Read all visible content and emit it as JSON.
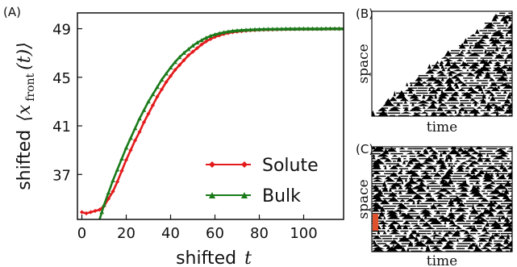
{
  "chart_data": [
    {
      "panel": "A",
      "panel_label": "(A)",
      "type": "line",
      "xlabel_prefix": "shifted",
      "xlabel_var": "t",
      "ylabel_prefix": "shifted",
      "ylabel_math": "⟨x",
      "ylabel_sub": "front",
      "ylabel_tail": "(t)⟩",
      "xlim": [
        -2,
        118
      ],
      "ylim": [
        33.3,
        50.3
      ],
      "xticks": [
        0,
        20,
        40,
        60,
        80,
        100
      ],
      "yticks": [
        37,
        41,
        45,
        49
      ],
      "legend_position": "lower-right",
      "series": [
        {
          "name": "Solute",
          "color": "#e41a1c",
          "marker": "diamond",
          "x": [
            0,
            2,
            4,
            6,
            8,
            10,
            12,
            14,
            16,
            18,
            20,
            22,
            24,
            26,
            28,
            30,
            32,
            34,
            36,
            38,
            40,
            42,
            44,
            46,
            48,
            50,
            52,
            54,
            56,
            58,
            60,
            62,
            64,
            66,
            68,
            70,
            72,
            74,
            76,
            78,
            80,
            82,
            84,
            86,
            88,
            90,
            92,
            94,
            96,
            98,
            100,
            102,
            104,
            106,
            108,
            110,
            112,
            114,
            116,
            118
          ],
          "y": [
            33.9,
            33.8,
            33.9,
            34.0,
            34.1,
            34.4,
            35.0,
            35.6,
            36.4,
            37.3,
            38.2,
            39.0,
            39.8,
            40.5,
            41.3,
            42.0,
            42.7,
            43.4,
            44.0,
            44.6,
            45.1,
            45.6,
            46.0,
            46.4,
            46.8,
            47.1,
            47.4,
            47.7,
            47.95,
            48.15,
            48.32,
            48.45,
            48.56,
            48.64,
            48.71,
            48.76,
            48.8,
            48.83,
            48.86,
            48.88,
            48.9,
            48.91,
            48.92,
            48.93,
            48.94,
            48.95,
            48.95,
            48.96,
            48.96,
            48.97,
            48.97,
            48.97,
            48.98,
            48.98,
            48.98,
            48.98,
            48.99,
            48.99,
            48.99,
            48.99
          ]
        },
        {
          "name": "Bulk",
          "color": "#1a7a1a",
          "marker": "triangle",
          "x": [
            8,
            9,
            10,
            12,
            14,
            16,
            18,
            20,
            22,
            24,
            26,
            28,
            30,
            32,
            34,
            36,
            38,
            40,
            42,
            44,
            46,
            48,
            50,
            52,
            54,
            56,
            58,
            60,
            62,
            64,
            66,
            68,
            70,
            72,
            74,
            76,
            78,
            80,
            82,
            84,
            86,
            88,
            90,
            92,
            94,
            96,
            98,
            100,
            102,
            104,
            106,
            108,
            110,
            112,
            114,
            116,
            118
          ],
          "y": [
            33.3,
            33.9,
            34.5,
            35.5,
            36.5,
            37.4,
            38.3,
            39.2,
            40.0,
            40.8,
            41.6,
            42.3,
            43.0,
            43.6,
            44.2,
            44.8,
            45.3,
            45.8,
            46.25,
            46.65,
            47.0,
            47.3,
            47.6,
            47.85,
            48.05,
            48.25,
            48.4,
            48.52,
            48.62,
            48.7,
            48.76,
            48.81,
            48.85,
            48.88,
            48.9,
            48.92,
            48.94,
            48.95,
            48.96,
            48.97,
            48.97,
            48.98,
            48.98,
            48.99,
            48.99,
            48.99,
            49.0,
            49.0,
            49.0,
            49.0,
            49.0,
            49.0,
            49.01,
            49.01,
            49.01,
            49.01,
            49.01
          ]
        }
      ]
    },
    {
      "panel": "B",
      "panel_label": "(B)",
      "type": "heatmap",
      "xlabel": "time",
      "ylabel": "space",
      "description_colors": [
        "#000000",
        "#ffffff"
      ]
    },
    {
      "panel": "C",
      "panel_label": "(C)",
      "type": "heatmap",
      "xlabel": "time",
      "ylabel": "space",
      "marker_color": "#e0522d"
    }
  ]
}
